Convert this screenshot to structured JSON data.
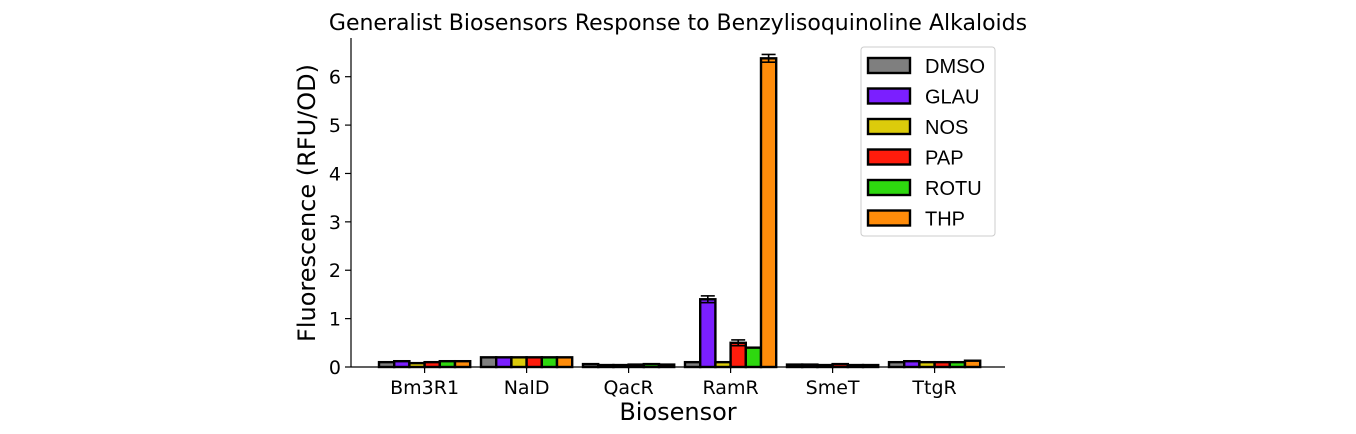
{
  "chart_data": {
    "type": "bar",
    "title": "Generalist Biosensors Response to Benzylisoquinoline Alkaloids",
    "xlabel": "Biosensor",
    "ylabel": "Fluorescence (RFU/OD)",
    "ylim": [
      0,
      6.8
    ],
    "yticks": [
      0,
      1,
      2,
      3,
      4,
      5,
      6
    ],
    "categories": [
      "Bm3R1",
      "NalD",
      "QacR",
      "RamR",
      "SmeT",
      "TtgR"
    ],
    "legend_position": "top-right",
    "grid": false,
    "series": [
      {
        "name": "DMSO",
        "color": "#7f7f7f",
        "values": [
          0.1,
          0.2,
          0.06,
          0.1,
          0.05,
          0.1
        ],
        "errors": [
          0,
          0,
          0,
          0,
          0,
          0
        ]
      },
      {
        "name": "GLAU",
        "color": "#7b1fff",
        "values": [
          0.12,
          0.2,
          0.04,
          1.4,
          0.05,
          0.12
        ],
        "errors": [
          0,
          0,
          0,
          0.07,
          0,
          0
        ]
      },
      {
        "name": "NOS",
        "color": "#dccb0b",
        "values": [
          0.08,
          0.2,
          0.04,
          0.1,
          0.04,
          0.1
        ],
        "errors": [
          0,
          0,
          0,
          0,
          0,
          0
        ]
      },
      {
        "name": "PAP",
        "color": "#ff1c0c",
        "values": [
          0.1,
          0.2,
          0.05,
          0.5,
          0.06,
          0.1
        ],
        "errors": [
          0,
          0,
          0,
          0.06,
          0,
          0
        ]
      },
      {
        "name": "ROTU",
        "color": "#2ed80f",
        "values": [
          0.12,
          0.2,
          0.06,
          0.4,
          0.04,
          0.1
        ],
        "errors": [
          0,
          0,
          0,
          0,
          0,
          0
        ]
      },
      {
        "name": "THP",
        "color": "#ff8c0a",
        "values": [
          0.12,
          0.2,
          0.05,
          6.38,
          0.04,
          0.13
        ],
        "errors": [
          0,
          0,
          0,
          0.08,
          0,
          0
        ]
      }
    ]
  }
}
